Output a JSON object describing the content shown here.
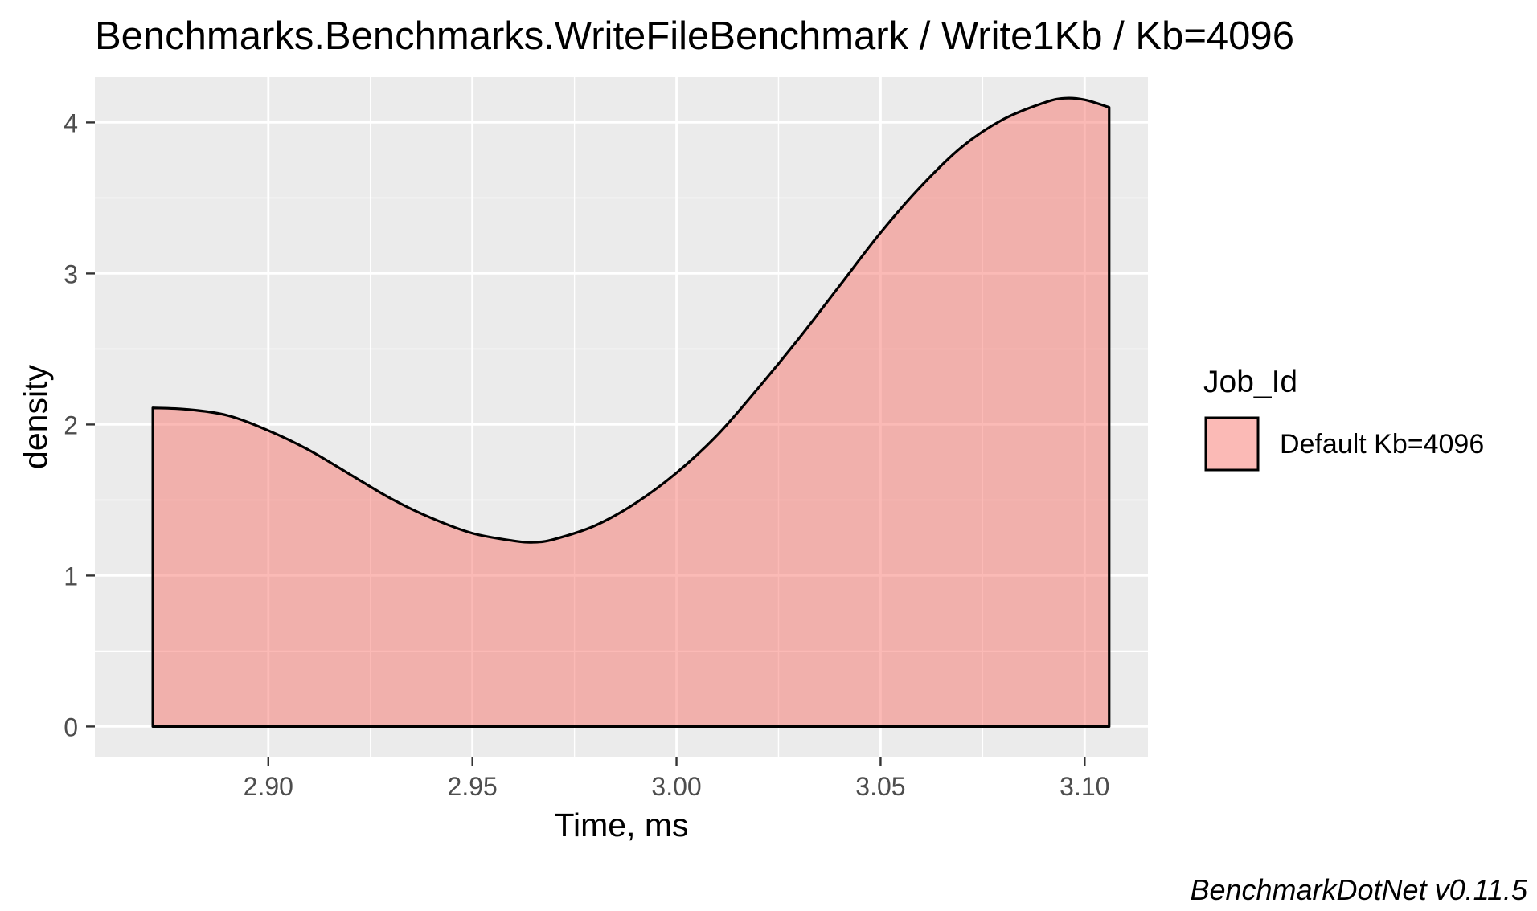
{
  "chart_data": {
    "type": "area",
    "title": "Benchmarks.Benchmarks.WriteFileBenchmark / Write1Kb / Kb=4096",
    "xlabel": "Time, ms",
    "ylabel": "density",
    "xlim": [
      2.8575,
      3.1155
    ],
    "ylim": [
      -0.2,
      4.3
    ],
    "x_ticks": [
      2.9,
      2.95,
      3.0,
      3.05,
      3.1
    ],
    "x_tick_labels": [
      "2.90",
      "2.95",
      "3.00",
      "3.05",
      "3.10"
    ],
    "y_ticks": [
      0,
      1,
      2,
      3,
      4
    ],
    "y_tick_labels": [
      "0",
      "1",
      "2",
      "3",
      "4"
    ],
    "grid": true,
    "legend": {
      "title": "Job_Id",
      "position": "right",
      "entries": [
        "Default Kb=4096"
      ]
    },
    "series": [
      {
        "name": "Default Kb=4096",
        "fill_color": "#f8766d",
        "fill_alpha": 0.5,
        "line_color": "#000000",
        "x": [
          2.8717,
          2.88,
          2.89,
          2.9,
          2.91,
          2.92,
          2.93,
          2.94,
          2.95,
          2.96,
          2.965,
          2.97,
          2.98,
          2.99,
          3.0,
          3.01,
          3.02,
          3.03,
          3.04,
          3.05,
          3.06,
          3.07,
          3.08,
          3.09,
          3.095,
          3.1,
          3.106
        ],
        "y": [
          2.11,
          2.1,
          2.06,
          1.96,
          1.83,
          1.67,
          1.51,
          1.38,
          1.28,
          1.23,
          1.22,
          1.24,
          1.33,
          1.48,
          1.68,
          1.93,
          2.24,
          2.57,
          2.92,
          3.27,
          3.58,
          3.84,
          4.02,
          4.13,
          4.16,
          4.15,
          4.1
        ]
      }
    ]
  },
  "caption": "BenchmarkDotNet v0.11.5"
}
